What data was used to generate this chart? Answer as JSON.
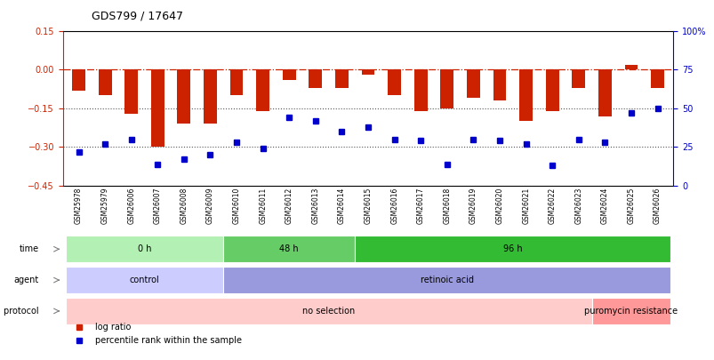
{
  "title": "GDS799 / 17647",
  "samples": [
    "GSM25978",
    "GSM25979",
    "GSM26006",
    "GSM26007",
    "GSM26008",
    "GSM26009",
    "GSM26010",
    "GSM26011",
    "GSM26012",
    "GSM26013",
    "GSM26014",
    "GSM26015",
    "GSM26016",
    "GSM26017",
    "GSM26018",
    "GSM26019",
    "GSM26020",
    "GSM26021",
    "GSM26022",
    "GSM26023",
    "GSM26024",
    "GSM26025",
    "GSM26026"
  ],
  "log_ratio": [
    -0.08,
    -0.1,
    -0.17,
    -0.3,
    -0.21,
    -0.21,
    -0.1,
    -0.16,
    -0.04,
    -0.07,
    -0.07,
    -0.02,
    -0.1,
    -0.16,
    -0.15,
    -0.11,
    -0.12,
    -0.2,
    -0.16,
    -0.07,
    -0.18,
    0.02,
    -0.07
  ],
  "percentile": [
    22,
    27,
    30,
    14,
    17,
    20,
    28,
    24,
    44,
    42,
    35,
    38,
    30,
    29,
    14,
    30,
    29,
    27,
    13,
    30,
    28,
    47,
    50
  ],
  "time_groups": [
    {
      "label": "0 h",
      "start": 0,
      "end": 5,
      "color": "#b3f0b3"
    },
    {
      "label": "48 h",
      "start": 6,
      "end": 10,
      "color": "#66cc66"
    },
    {
      "label": "96 h",
      "start": 11,
      "end": 22,
      "color": "#33bb33"
    }
  ],
  "agent_groups": [
    {
      "label": "control",
      "start": 0,
      "end": 5,
      "color": "#ccccff"
    },
    {
      "label": "retinoic acid",
      "start": 6,
      "end": 22,
      "color": "#9999dd"
    }
  ],
  "growth_groups": [
    {
      "label": "no selection",
      "start": 0,
      "end": 19,
      "color": "#ffcccc"
    },
    {
      "label": "puromycin resistance",
      "start": 20,
      "end": 22,
      "color": "#ff9999"
    }
  ],
  "ylim_left": [
    -0.45,
    0.15
  ],
  "ylim_right": [
    0,
    100
  ],
  "yticks_left": [
    0.15,
    0.0,
    -0.15,
    -0.3,
    -0.45
  ],
  "yticks_right": [
    100,
    75,
    50,
    25,
    0
  ],
  "bar_color": "#cc2200",
  "dot_color": "#0000cc",
  "hline_color": "#cc2200",
  "dotline_color": "#555555"
}
